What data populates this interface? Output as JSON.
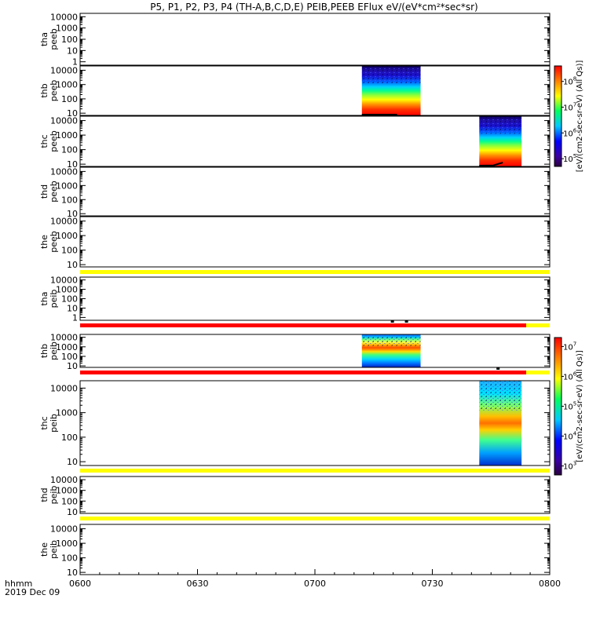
{
  "chart_data": {
    "type": "heatmap",
    "title": "P5, P1, P2, P3, P4 (TH-A,B,C,D,E) PEIB,PEEB EFlux eV/(eV*cm²*sec*sr)",
    "xlabel_top": "hhmm",
    "xlabel_bottom": "2019 Dec 09",
    "x_tick_labels": [
      "0600",
      "0630",
      "0700",
      "0730",
      "0800"
    ],
    "x_ticks_hours": [
      6.0,
      6.5,
      7.0,
      7.5,
      8.0
    ],
    "x_range_hours": [
      6.0,
      8.0
    ],
    "y_scale": "log",
    "panels": [
      {
        "id": "tha-peeb",
        "label_1": "tha",
        "label_2": "peeb",
        "ylim": [
          0.5,
          20000
        ],
        "yticks": [
          1,
          10,
          100,
          1000,
          10000
        ],
        "ytick_labels": [
          "1",
          "10",
          "100",
          "1000",
          "10000"
        ],
        "blocks": [],
        "indicator_bars": [],
        "dots": []
      },
      {
        "id": "thb-peeb",
        "label_1": "thb",
        "label_2": "peeb",
        "ylim": [
          7,
          20000
        ],
        "yticks": [
          10,
          100,
          1000,
          10000
        ],
        "ytick_labels": [
          "10",
          "100",
          "1000",
          "10000"
        ],
        "blocks": [
          {
            "t_start": 7.2,
            "t_end": 7.45,
            "style": "electron"
          }
        ],
        "indicator_bars": [],
        "dots": [],
        "potential_line": [
          [
            7.2,
            6.0
          ],
          [
            7.35,
            6.0
          ]
        ]
      },
      {
        "id": "thc-peeb",
        "label_1": "thc",
        "label_2": "peeb",
        "ylim": [
          7,
          20000
        ],
        "yticks": [
          10,
          100,
          1000,
          10000
        ],
        "ytick_labels": [
          "10",
          "100",
          "1000",
          "10000"
        ],
        "blocks": [
          {
            "t_start": 7.7,
            "t_end": 7.88,
            "style": "electron"
          }
        ],
        "indicator_bars": [],
        "dots": [],
        "potential_line": [
          [
            7.7,
            7.5
          ],
          [
            7.76,
            8.2
          ],
          [
            7.8,
            13
          ]
        ]
      },
      {
        "id": "thd-peeb",
        "label_1": "thd",
        "label_2": "peeb",
        "ylim": [
          7,
          20000
        ],
        "yticks": [
          10,
          100,
          1000,
          10000
        ],
        "ytick_labels": [
          "10",
          "100",
          "1000",
          "10000"
        ],
        "blocks": [],
        "indicator_bars": [],
        "dots": []
      },
      {
        "id": "the-peeb",
        "label_1": "the",
        "label_2": "peeb",
        "ylim": [
          7,
          20000
        ],
        "yticks": [
          10,
          100,
          1000,
          10000
        ],
        "ytick_labels": [
          "10",
          "100",
          "1000",
          "10000"
        ],
        "blocks": [],
        "indicator_bars": [
          {
            "t_start": 6.0,
            "t_end": 8.0,
            "color": "#ffff00"
          }
        ],
        "dots": []
      },
      {
        "id": "tha-peib",
        "label_1": "tha",
        "label_2": "peib",
        "ylim": [
          0.5,
          20000
        ],
        "yticks": [
          1,
          10,
          100,
          1000,
          10000
        ],
        "ytick_labels": [
          "1",
          "10",
          "100",
          "1000",
          "10000"
        ],
        "blocks": [],
        "indicator_bars": [
          {
            "t_start": 6.0,
            "t_end": 7.9,
            "color": "#ff0000"
          },
          {
            "t_start": 7.9,
            "t_end": 8.0,
            "color": "#ffff00"
          }
        ],
        "dots": [
          7.33,
          7.39
        ]
      },
      {
        "id": "thb-peib",
        "label_1": "thb",
        "label_2": "peib",
        "ylim": [
          7,
          20000
        ],
        "yticks": [
          10,
          100,
          1000,
          10000
        ],
        "ytick_labels": [
          "10",
          "100",
          "1000",
          "10000"
        ],
        "blocks": [
          {
            "t_start": 7.2,
            "t_end": 7.45,
            "style": "ion"
          }
        ],
        "indicator_bars": [
          {
            "t_start": 6.0,
            "t_end": 7.9,
            "color": "#ff0000"
          },
          {
            "t_start": 7.9,
            "t_end": 8.0,
            "color": "#ffff00"
          }
        ],
        "dots": [
          7.78
        ]
      },
      {
        "id": "thc-peib",
        "label_1": "thc",
        "label_2": "peib",
        "ylim": [
          7,
          20000
        ],
        "yticks": [
          10,
          100,
          1000,
          10000
        ],
        "ytick_labels": [
          "10",
          "100",
          "1000",
          "10000"
        ],
        "blocks": [
          {
            "t_start": 7.7,
            "t_end": 7.88,
            "style": "ion-c"
          }
        ],
        "indicator_bars": [
          {
            "t_start": 6.0,
            "t_end": 8.0,
            "color": "#ffff00"
          }
        ],
        "dots": []
      },
      {
        "id": "thd-peib",
        "label_1": "thd",
        "label_2": "peib",
        "ylim": [
          7,
          20000
        ],
        "yticks": [
          10,
          100,
          1000,
          10000
        ],
        "ytick_labels": [
          "10",
          "100",
          "1000",
          "10000"
        ],
        "blocks": [],
        "indicator_bars": [
          {
            "t_start": 6.0,
            "t_end": 8.0,
            "color": "#ffff00"
          }
        ],
        "dots": []
      },
      {
        "id": "the-peib",
        "label_1": "the",
        "label_2": "peib",
        "ylim": [
          7,
          20000
        ],
        "yticks": [
          10,
          100,
          1000,
          10000
        ],
        "ytick_labels": [
          "10",
          "100",
          "1000",
          "10000"
        ],
        "blocks": [],
        "indicator_bars": [],
        "dots": []
      }
    ],
    "colorbars": [
      {
        "id": "electron-flux",
        "label_main": "[eV/(cm2-sec-sr-eV)",
        "label_suffix": "(All Qs)]",
        "vmin_exp": 4.7,
        "vmax_exp": 8.6,
        "tick_exps": [
          5,
          6,
          7,
          8
        ],
        "tick_labels": [
          "10",
          "10",
          "10",
          "10"
        ],
        "tick_exponents": [
          "5",
          "6",
          "7",
          "8"
        ]
      },
      {
        "id": "ion-flux",
        "label_main": "[eV/(cm2-sec-sr-eV)",
        "label_suffix": "(All Qs)]",
        "vmin_exp": 2.7,
        "vmax_exp": 7.3,
        "tick_exps": [
          3,
          4,
          5,
          6,
          7
        ],
        "tick_labels": [
          "10",
          "10",
          "10",
          "10",
          "10"
        ],
        "tick_exponents": [
          "3",
          "4",
          "5",
          "6",
          "7"
        ]
      }
    ]
  }
}
